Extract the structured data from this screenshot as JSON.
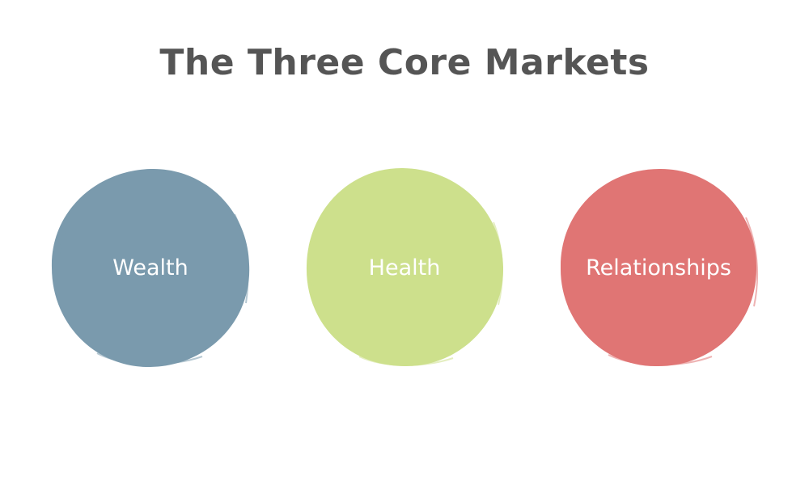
{
  "title": "The Three Core Markets",
  "markets": [
    {
      "label": "Wealth",
      "color": "#7a9aad"
    },
    {
      "label": "Health",
      "color": "#cde08c"
    },
    {
      "label": "Relationships",
      "color": "#e07574"
    }
  ]
}
